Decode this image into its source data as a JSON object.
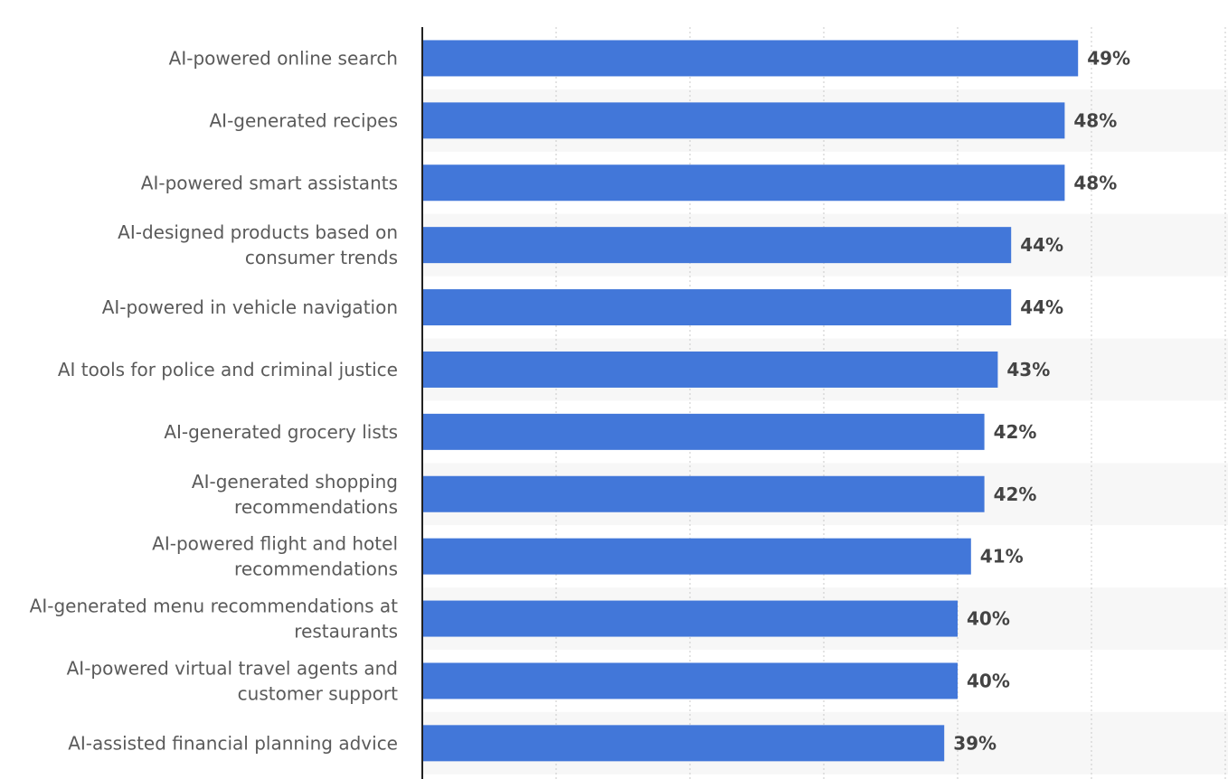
{
  "chart_data": {
    "type": "bar",
    "orientation": "horizontal",
    "categories": [
      "AI-powered online search",
      "AI-generated recipes",
      "AI-powered smart assistants",
      "AI-designed products based on consumer trends",
      "AI-powered in vehicle navigation",
      "AI tools for police and criminal justice",
      "AI-generated grocery lists",
      "AI-generated shopping recommendations",
      "AI-powered flight and hotel recommendations",
      "AI-generated menu recommendations at restaurants",
      "AI-powered virtual travel agents and customer support",
      "AI-assisted financial planning advice"
    ],
    "category_lines": [
      [
        "AI-powered online search"
      ],
      [
        "AI-generated recipes"
      ],
      [
        "AI-powered smart assistants"
      ],
      [
        "AI-designed products based on",
        "consumer trends"
      ],
      [
        "AI-powered in vehicle navigation"
      ],
      [
        "AI tools for police and criminal justice"
      ],
      [
        "AI-generated grocery lists"
      ],
      [
        "AI-generated shopping",
        "recommendations"
      ],
      [
        "AI-powered flight and hotel",
        "recommendations"
      ],
      [
        "AI-generated menu recommendations at",
        "restaurants"
      ],
      [
        "AI-powered virtual travel agents and",
        "customer support"
      ],
      [
        "AI-assisted financial planning advice"
      ]
    ],
    "values": [
      49,
      48,
      48,
      44,
      44,
      43,
      42,
      42,
      41,
      40,
      40,
      39
    ],
    "value_labels": [
      "49%",
      "48%",
      "48%",
      "44%",
      "44%",
      "43%",
      "42%",
      "42%",
      "41%",
      "40%",
      "40%",
      "39%"
    ],
    "unit": "%",
    "xlim": [
      0,
      60
    ],
    "grid": "vertical dotted",
    "title": "",
    "xlabel": "",
    "ylabel": "",
    "colors": {
      "bar": "#4277d9",
      "band": "#f7f7f7",
      "grid": "#c8c8c8",
      "axis": "#222222"
    }
  }
}
